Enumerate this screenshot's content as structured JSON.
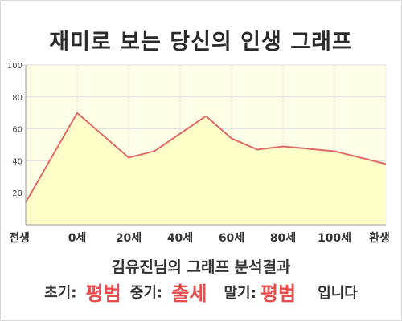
{
  "title": "재미로 보는 당신의 인생 그래프",
  "chart_data": {
    "type": "area",
    "title": "재미로 보는 당신의 인생 그래프",
    "ylim": [
      0,
      100
    ],
    "yticks": [
      20,
      40,
      60,
      80,
      100
    ],
    "grid": true,
    "x_tick_labels": [
      "전생",
      "0세",
      "20세",
      "40세",
      "60세",
      "80세",
      "100세",
      "환생"
    ],
    "series": [
      {
        "x": [
          -20,
          0,
          20,
          30,
          50,
          60,
          70,
          80,
          100,
          120
        ],
        "values": [
          14,
          70,
          42,
          46,
          68,
          54,
          47,
          49,
          46,
          38
        ]
      }
    ],
    "colors": {
      "line": "#e06a6a",
      "fill": "#fffec8",
      "plot_bg": "#ffffe8",
      "grid": "#dedede"
    }
  },
  "result": {
    "title": "김유진님의 그래프 분석결과",
    "early_label": "초기:",
    "early_value": "평범",
    "mid_label": "중기:",
    "mid_value": "출세",
    "late_label": "말기:",
    "late_value": "평범",
    "suffix": "입니다"
  }
}
